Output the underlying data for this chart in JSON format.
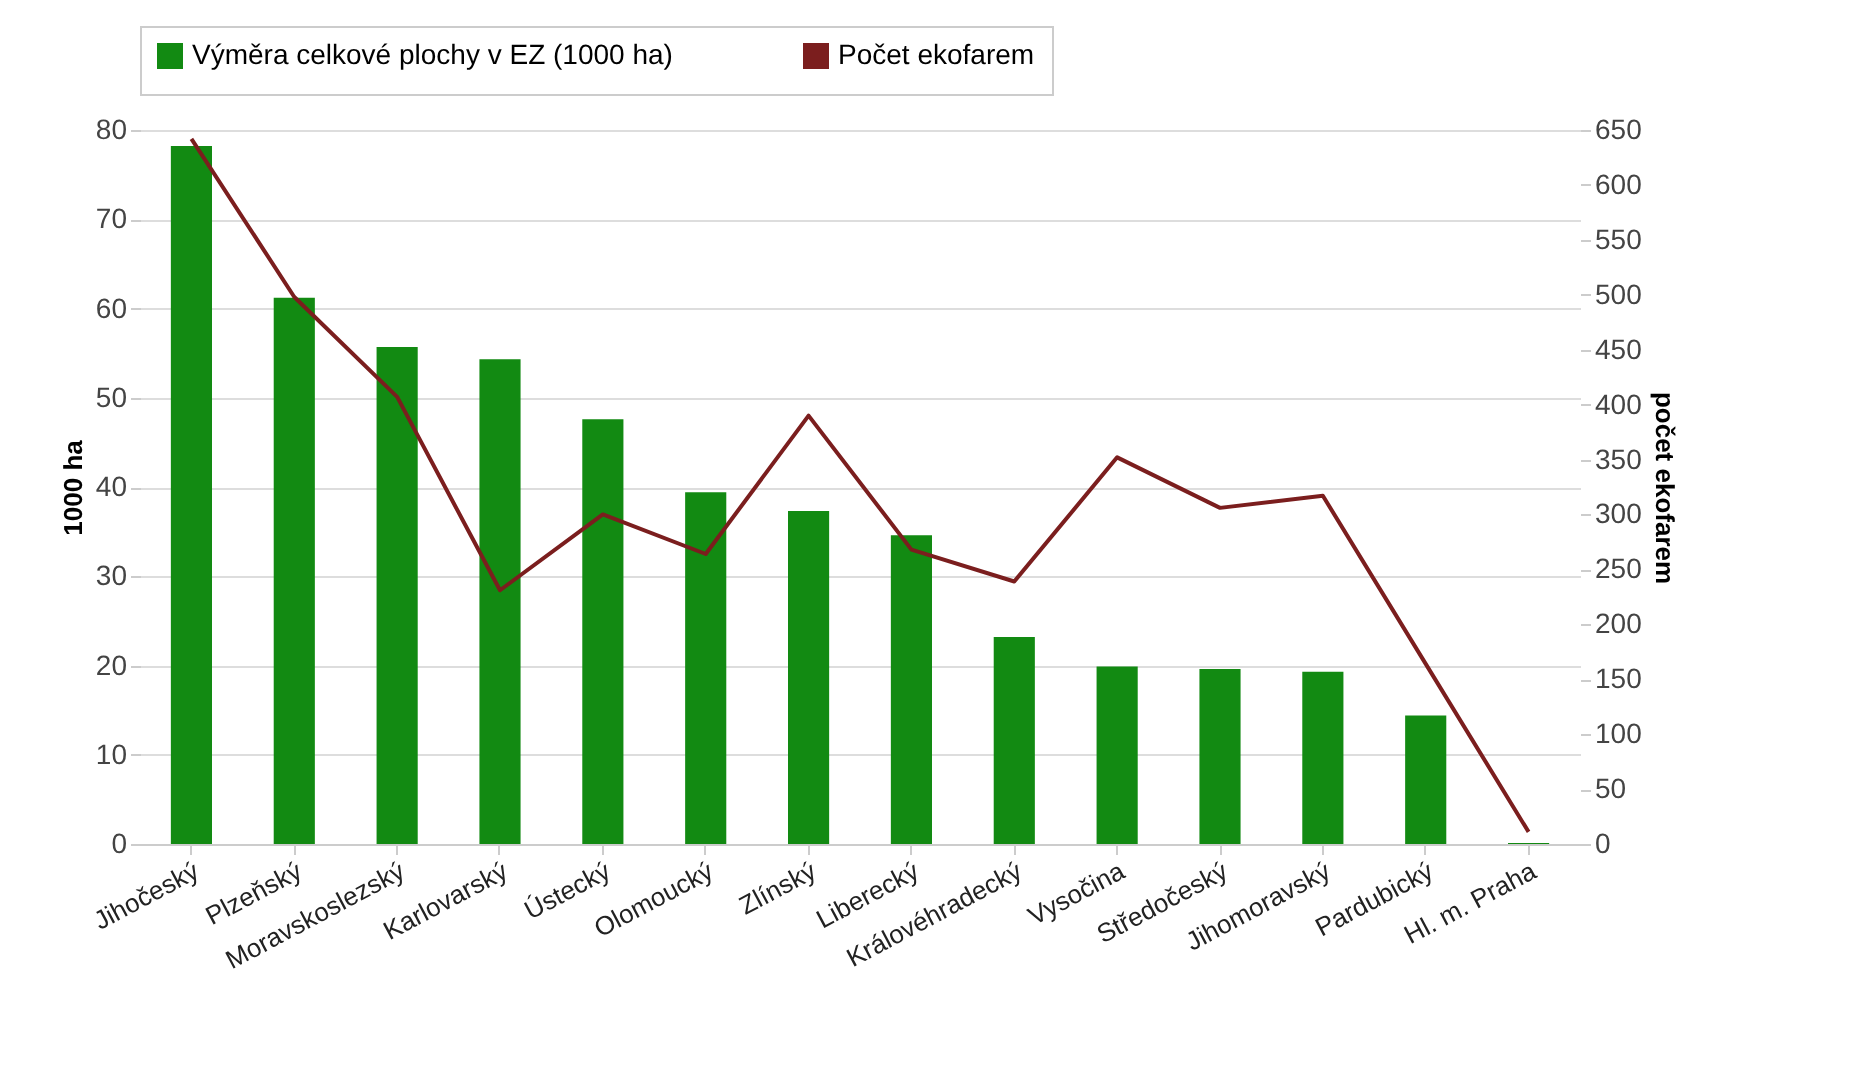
{
  "chart_data": {
    "type": "bar",
    "ylabel": "1000 ha",
    "y2label": "počet ekofarem",
    "categories": [
      "Jihočeský",
      "Plzeňský",
      "Moravskoslezský",
      "Karlovarský",
      "Ústecký",
      "Olomoucký",
      "Zlínský",
      "Liberecký",
      "Královéhradecký",
      "Vysočina",
      "Středočeský",
      "Jihomoravský",
      "Pardubický",
      "Hl. m. Praha"
    ],
    "series": [
      {
        "name": "Výměra celkové plochy v EZ (1000 ha)",
        "color": "#128a12",
        "values": [
          78.2,
          61.2,
          55.7,
          54.3,
          47.6,
          39.4,
          37.3,
          34.6,
          23.2,
          19.9,
          19.6,
          19.3,
          14.4,
          0.1
        ]
      },
      {
        "name": "Počet ekofarem",
        "type": "line",
        "axis": "y2",
        "color": "#7b1e1e",
        "values": [
          642,
          498,
          407,
          231,
          300,
          264,
          390,
          268,
          239,
          352,
          306,
          317,
          164,
          11
        ]
      }
    ],
    "ylim": [
      0,
      80
    ],
    "yticks": [
      0,
      10,
      20,
      30,
      40,
      50,
      60,
      70,
      80
    ],
    "y2lim": [
      0,
      650
    ],
    "y2ticks": [
      0,
      50,
      100,
      150,
      200,
      250,
      300,
      350,
      400,
      450,
      500,
      550,
      600,
      650
    ],
    "grid": "y",
    "legend": "top",
    "marker": "none",
    "line_style": "solid"
  }
}
